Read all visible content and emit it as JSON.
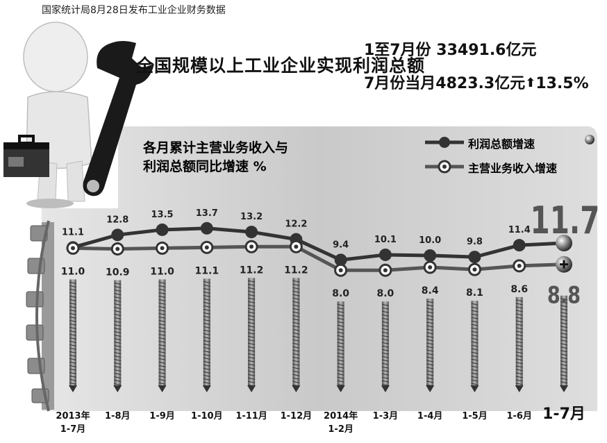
{
  "header": {
    "source": "国家统计局8月28日发布工业企业财务数据",
    "headline": "全国规模以上工业企业实现利润总额",
    "stat_ytd": "1至7月份 33491.6亿元",
    "stat_month_prefix": "7月份当月4823.3亿元",
    "stat_month_arrow": "⬆",
    "stat_month_pct": "13.5%"
  },
  "chart_data": {
    "type": "line",
    "title": "各月累计主营业务收入与 利润总额同比增速 %",
    "title_line1": "各月累计主营业务收入与",
    "title_line2": "利润总额同比增速 %",
    "legend_position": "top-right",
    "categories": [
      "2013年 1-7月",
      "1-8月",
      "1-9月",
      "1-10月",
      "1-11月",
      "1-12月",
      "2014年 1-2月",
      "1-3月",
      "1-4月",
      "1-5月",
      "1-6月",
      "1-7月"
    ],
    "category_lines": [
      [
        "2013年",
        "1-7月"
      ],
      [
        "1-8月"
      ],
      [
        "1-9月"
      ],
      [
        "1-10月"
      ],
      [
        "1-11月"
      ],
      [
        "1-12月"
      ],
      [
        "2014年",
        "1-2月"
      ],
      [
        "1-3月"
      ],
      [
        "1-4月"
      ],
      [
        "1-5月"
      ],
      [
        "1-6月"
      ],
      [
        "1-7月"
      ]
    ],
    "series": [
      {
        "name": "利润总额增速",
        "values": [
          11.1,
          12.8,
          13.5,
          13.7,
          13.2,
          12.2,
          9.4,
          10.1,
          10.0,
          9.8,
          11.4,
          11.7
        ],
        "color": "#3a3a3a"
      },
      {
        "name": "主营业务收入增速",
        "values": [
          11.0,
          10.9,
          11.0,
          11.1,
          11.2,
          11.2,
          8.0,
          8.0,
          8.4,
          8.1,
          8.6,
          8.8
        ],
        "color": "#555555"
      }
    ],
    "labels_profit": [
      "11.1",
      "12.8",
      "13.5",
      "13.7",
      "13.2",
      "12.2",
      "9.4",
      "10.1",
      "10.0",
      "9.8",
      "11.4",
      "11.7"
    ],
    "labels_revenue": [
      "11.0",
      "10.9",
      "11.0",
      "11.1",
      "11.2",
      "11.2",
      "8.0",
      "8.0",
      "8.4",
      "8.1",
      "8.6",
      "8.8"
    ],
    "grid": false
  },
  "colors": {
    "panel": "#cfcfcf",
    "line_dark": "#333333",
    "line_mid": "#555555"
  },
  "icons": [
    "figure-with-toolbox",
    "wrench-icon",
    "gear-icon",
    "screw-icon"
  ]
}
